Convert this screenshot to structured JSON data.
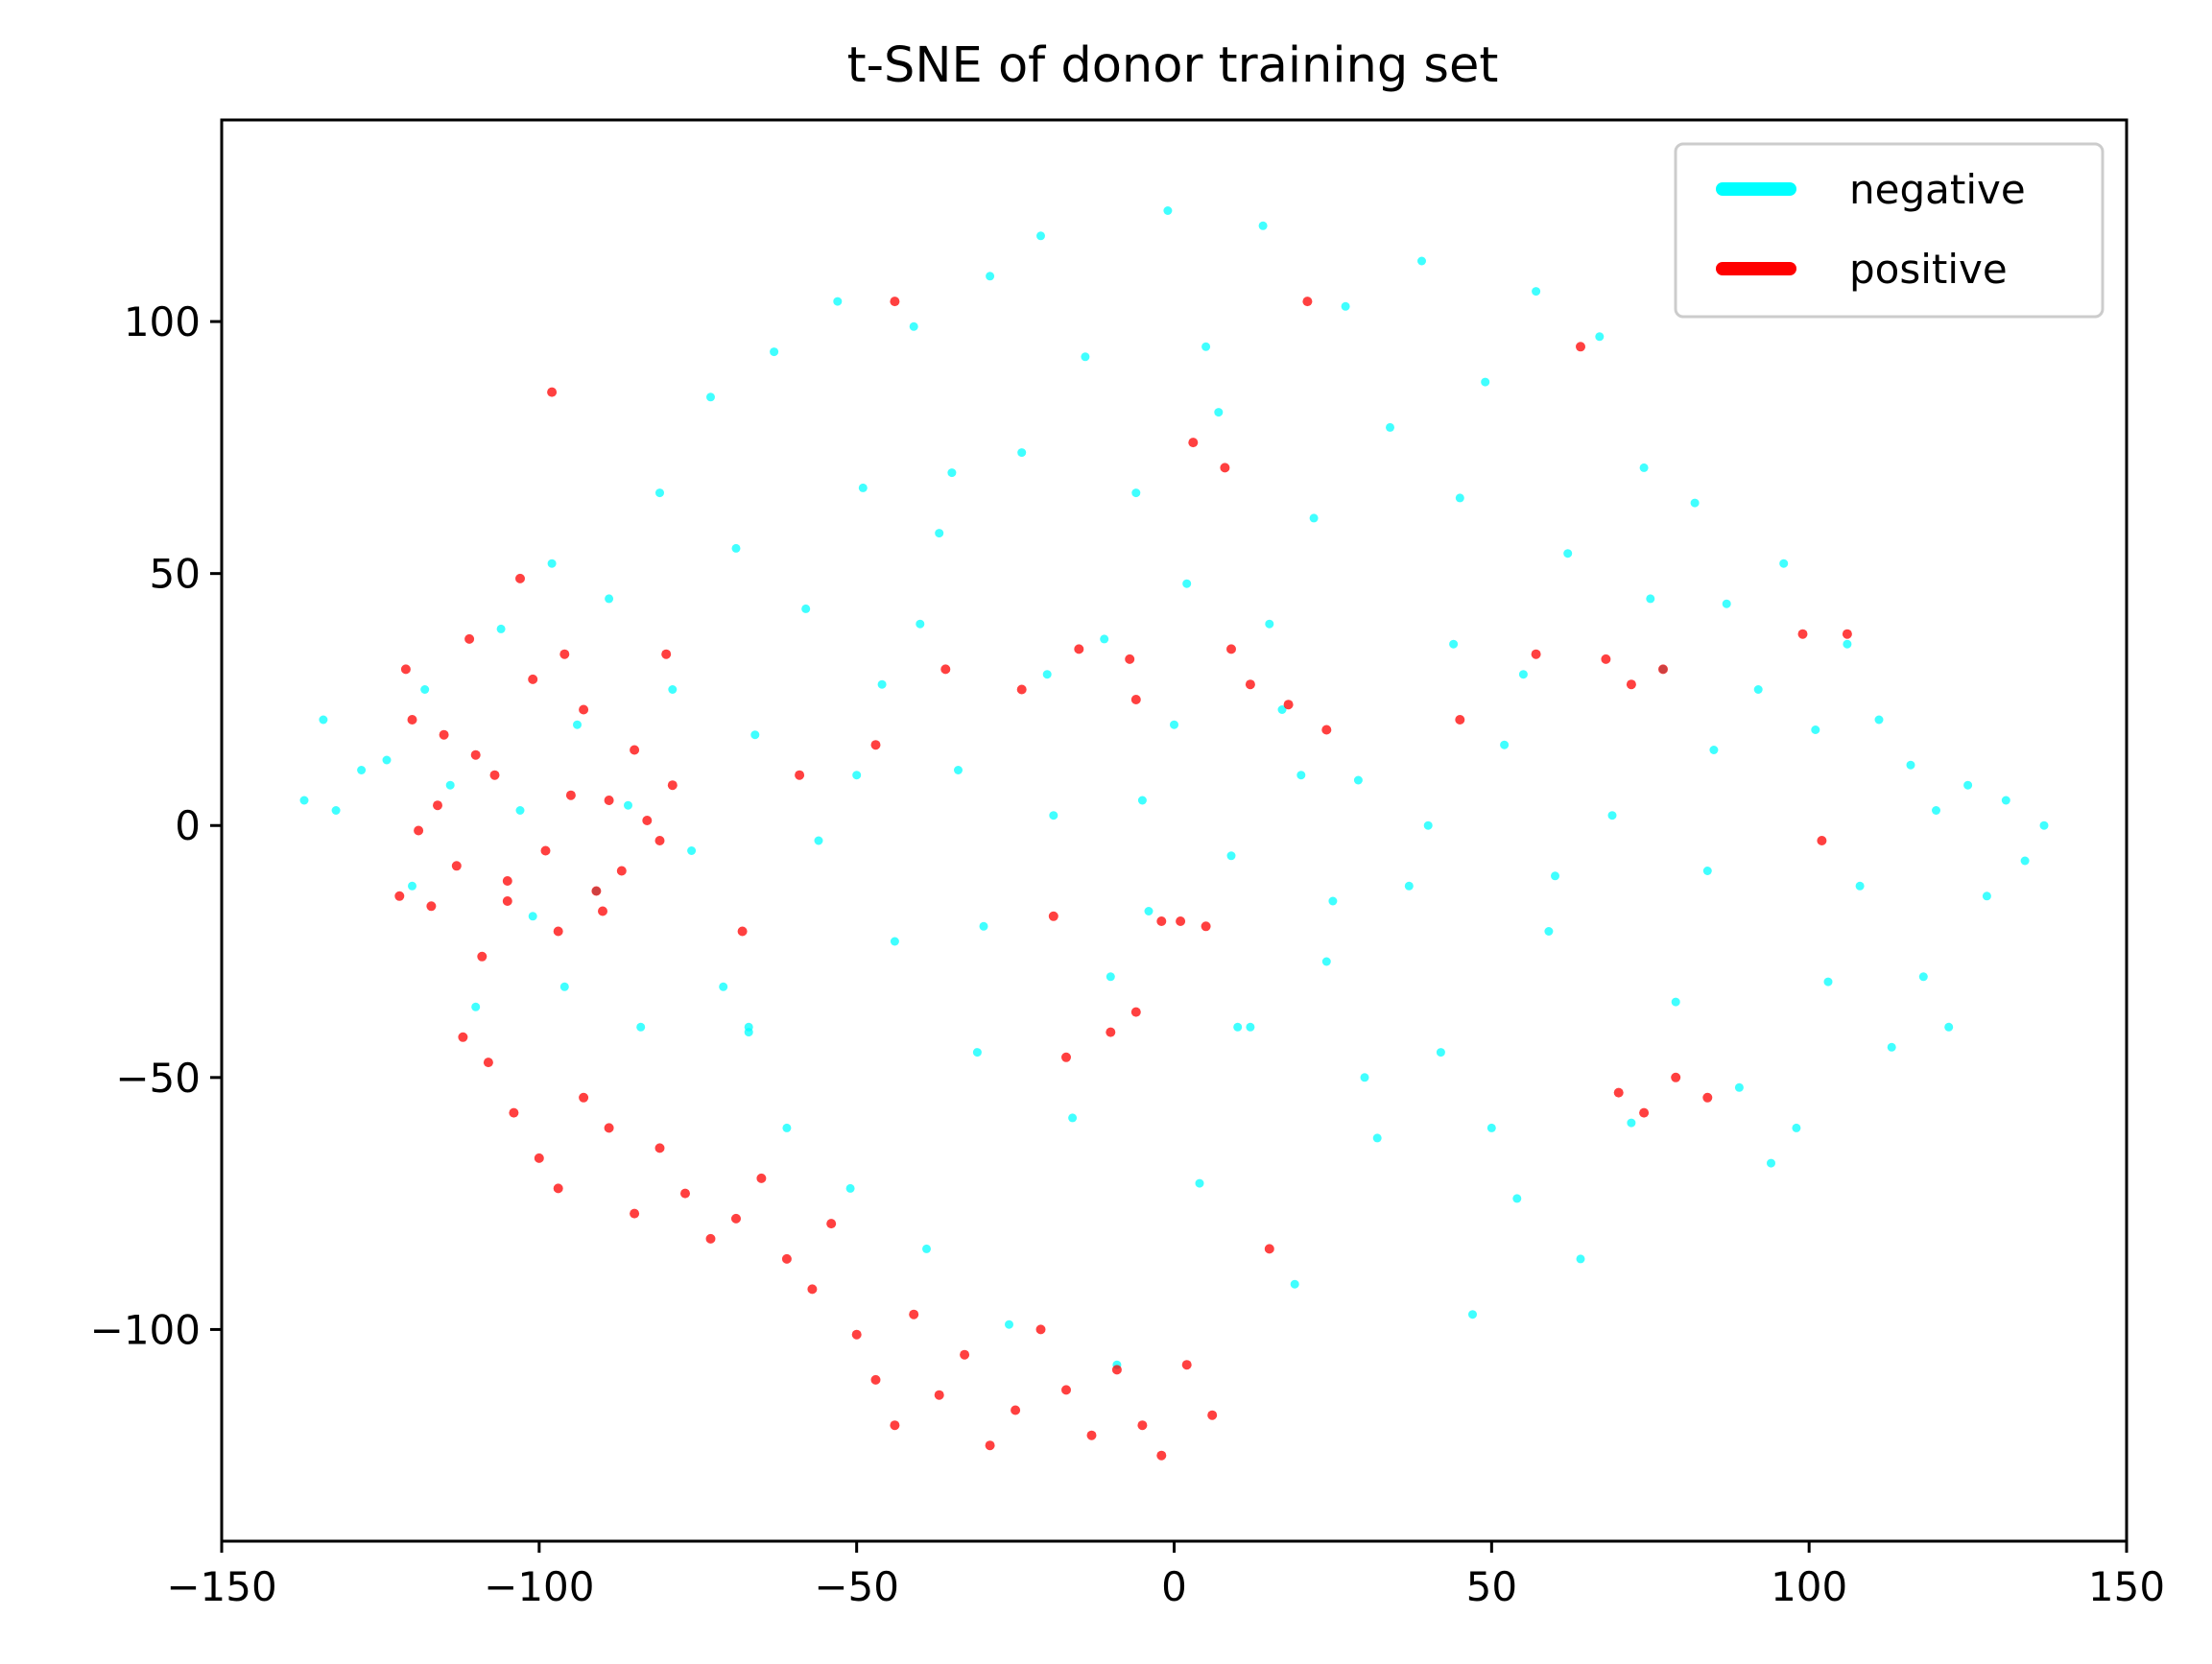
{
  "chart_data": {
    "type": "scatter",
    "title": "t-SNE of donor training set",
    "xlabel": "",
    "ylabel": "",
    "xlim": [
      -150,
      150
    ],
    "ylim": [
      -142,
      140
    ],
    "xticks": [
      -150,
      -100,
      -50,
      0,
      50,
      100,
      150
    ],
    "xtick_labels": [
      "−150",
      "−100",
      "−50",
      "0",
      "50",
      "100",
      "150"
    ],
    "yticks": [
      100,
      50,
      0,
      -50,
      -100
    ],
    "ytick_labels": [
      "100",
      "50",
      "0",
      "−50",
      "−100"
    ],
    "grid": false,
    "legend_position": "top-right",
    "series": [
      {
        "name": "negative",
        "color": "#00ffff",
        "points": [
          [
            -137,
            5
          ],
          [
            -134,
            21
          ],
          [
            -132,
            3
          ],
          [
            -128,
            11
          ],
          [
            -124,
            13
          ],
          [
            -120,
            -12
          ],
          [
            -118,
            27
          ],
          [
            -114,
            8
          ],
          [
            -110,
            -36
          ],
          [
            -106,
            39
          ],
          [
            -103,
            3
          ],
          [
            -101,
            -18
          ],
          [
            -98,
            52
          ],
          [
            -96,
            -32
          ],
          [
            -94,
            20
          ],
          [
            -91,
            -13
          ],
          [
            -89,
            45
          ],
          [
            -86,
            4
          ],
          [
            -84,
            -40
          ],
          [
            -81,
            66
          ],
          [
            -79,
            27
          ],
          [
            -76,
            -5
          ],
          [
            -73,
            85
          ],
          [
            -71,
            -32
          ],
          [
            -69,
            55
          ],
          [
            -67,
            -41
          ],
          [
            -67,
            -40
          ],
          [
            -66,
            18
          ],
          [
            -63,
            94
          ],
          [
            -61,
            -60
          ],
          [
            -58,
            43
          ],
          [
            -56,
            -3
          ],
          [
            -53,
            104
          ],
          [
            -51,
            -72
          ],
          [
            -49,
            67
          ],
          [
            -46,
            28
          ],
          [
            -44,
            -23
          ],
          [
            -41,
            99
          ],
          [
            -39,
            -84
          ],
          [
            -37,
            58
          ],
          [
            -34,
            11
          ],
          [
            -31,
            -45
          ],
          [
            -29,
            109
          ],
          [
            -26,
            -99
          ],
          [
            -24,
            74
          ],
          [
            -21,
            117
          ],
          [
            -19,
            2
          ],
          [
            -16,
            -58
          ],
          [
            -14,
            93
          ],
          [
            -11,
            37
          ],
          [
            -9,
            -107
          ],
          [
            -6,
            66
          ],
          [
            -4,
            -17
          ],
          [
            -1,
            122
          ],
          [
            2,
            48
          ],
          [
            4,
            -71
          ],
          [
            7,
            82
          ],
          [
            9,
            -6
          ],
          [
            12,
            -40
          ],
          [
            14,
            119
          ],
          [
            17,
            23
          ],
          [
            19,
            -91
          ],
          [
            22,
            61
          ],
          [
            24,
            -27
          ],
          [
            27,
            103
          ],
          [
            29,
            9
          ],
          [
            32,
            -62
          ],
          [
            34,
            79
          ],
          [
            37,
            -12
          ],
          [
            39,
            112
          ],
          [
            42,
            -45
          ],
          [
            44,
            36
          ],
          [
            47,
            -97
          ],
          [
            49,
            88
          ],
          [
            52,
            16
          ],
          [
            54,
            -74
          ],
          [
            57,
            106
          ],
          [
            59,
            -21
          ],
          [
            62,
            54
          ],
          [
            64,
            -86
          ],
          [
            67,
            97
          ],
          [
            69,
            2
          ],
          [
            72,
            -59
          ],
          [
            74,
            71
          ],
          [
            77,
            31
          ],
          [
            79,
            -35
          ],
          [
            82,
            64
          ],
          [
            84,
            -9
          ],
          [
            87,
            44
          ],
          [
            89,
            -52
          ],
          [
            92,
            27
          ],
          [
            94,
            -67
          ],
          [
            96,
            52
          ],
          [
            98,
            -60
          ],
          [
            101,
            19
          ],
          [
            103,
            -31
          ],
          [
            106,
            36
          ],
          [
            108,
            -12
          ],
          [
            111,
            21
          ],
          [
            113,
            -44
          ],
          [
            116,
            12
          ],
          [
            118,
            -30
          ],
          [
            120,
            3
          ],
          [
            122,
            -40
          ],
          [
            125,
            8
          ],
          [
            128,
            -14
          ],
          [
            131,
            5
          ],
          [
            134,
            -7
          ],
          [
            137,
            0
          ],
          [
            -40,
            40
          ],
          [
            -20,
            30
          ],
          [
            0,
            20
          ],
          [
            20,
            10
          ],
          [
            40,
            0
          ],
          [
            60,
            -10
          ],
          [
            -30,
            -20
          ],
          [
            -10,
            -30
          ],
          [
            10,
            -40
          ],
          [
            30,
            -50
          ],
          [
            50,
            -60
          ],
          [
            -50,
            10
          ],
          [
            -35,
            70
          ],
          [
            5,
            95
          ],
          [
            45,
            65
          ],
          [
            75,
            45
          ],
          [
            85,
            15
          ],
          [
            15,
            40
          ],
          [
            -5,
            5
          ],
          [
            25,
            -15
          ],
          [
            55,
            30
          ]
        ]
      },
      {
        "name": "positive",
        "color": "#ff0000",
        "points": [
          [
            -121,
            31
          ],
          [
            -119,
            -1
          ],
          [
            -117,
            -16
          ],
          [
            -115,
            18
          ],
          [
            -113,
            -8
          ],
          [
            -111,
            37
          ],
          [
            -109,
            -26
          ],
          [
            -107,
            10
          ],
          [
            -105,
            -11
          ],
          [
            -103,
            49
          ],
          [
            -101,
            29
          ],
          [
            -99,
            -5
          ],
          [
            -97,
            -21
          ],
          [
            -95,
            6
          ],
          [
            -93,
            23
          ],
          [
            -91,
            -13
          ],
          [
            -89,
            5
          ],
          [
            -87,
            -9
          ],
          [
            -85,
            15
          ],
          [
            -83,
            1
          ],
          [
            -81,
            -3
          ],
          [
            -79,
            8
          ],
          [
            -112,
            -42
          ],
          [
            -108,
            -47
          ],
          [
            -104,
            -57
          ],
          [
            -100,
            -66
          ],
          [
            -97,
            -72
          ],
          [
            -93,
            -54
          ],
          [
            -89,
            -60
          ],
          [
            -85,
            -77
          ],
          [
            -81,
            -64
          ],
          [
            -77,
            -73
          ],
          [
            -73,
            -82
          ],
          [
            -69,
            -78
          ],
          [
            -65,
            -70
          ],
          [
            -61,
            -86
          ],
          [
            -57,
            -92
          ],
          [
            -54,
            -79
          ],
          [
            -50,
            -101
          ],
          [
            -47,
            -110
          ],
          [
            -44,
            -119
          ],
          [
            -41,
            -97
          ],
          [
            -37,
            -113
          ],
          [
            -33,
            -105
          ],
          [
            -29,
            -123
          ],
          [
            -25,
            -116
          ],
          [
            -21,
            -100
          ],
          [
            -17,
            -112
          ],
          [
            -13,
            -121
          ],
          [
            -9,
            -108
          ],
          [
            -5,
            -119
          ],
          [
            -2,
            -125
          ],
          [
            2,
            -107
          ],
          [
            6,
            -117
          ],
          [
            15,
            -84
          ],
          [
            -24,
            27
          ],
          [
            -15,
            35
          ],
          [
            -7,
            33
          ],
          [
            3,
            76
          ],
          [
            8,
            71
          ],
          [
            12,
            28
          ],
          [
            18,
            24
          ],
          [
            24,
            19
          ],
          [
            -19,
            -18
          ],
          [
            -36,
            31
          ],
          [
            -47,
            16
          ],
          [
            -59,
            10
          ],
          [
            -68,
            -21
          ],
          [
            68,
            33
          ],
          [
            72,
            28
          ],
          [
            77,
            31
          ],
          [
            102,
            -3
          ],
          [
            106,
            38
          ],
          [
            99,
            38
          ],
          [
            -17,
            -46
          ],
          [
            -10,
            -41
          ],
          [
            -6,
            -37
          ],
          [
            70,
            -53
          ],
          [
            74,
            -57
          ],
          [
            79,
            -50
          ],
          [
            84,
            -54
          ],
          [
            -2,
            -19
          ],
          [
            1,
            -19
          ],
          [
            5,
            -20
          ],
          [
            -44,
            104
          ],
          [
            21,
            104
          ],
          [
            64,
            95
          ],
          [
            -98,
            86
          ],
          [
            -80,
            34
          ],
          [
            45,
            21
          ],
          [
            57,
            34
          ],
          [
            -6,
            25
          ],
          [
            9,
            35
          ],
          [
            -122,
            -14
          ],
          [
            -120,
            21
          ],
          [
            -116,
            4
          ],
          [
            -110,
            14
          ],
          [
            -105,
            -15
          ],
          [
            -96,
            34
          ],
          [
            -90,
            -17
          ]
        ]
      }
    ]
  }
}
